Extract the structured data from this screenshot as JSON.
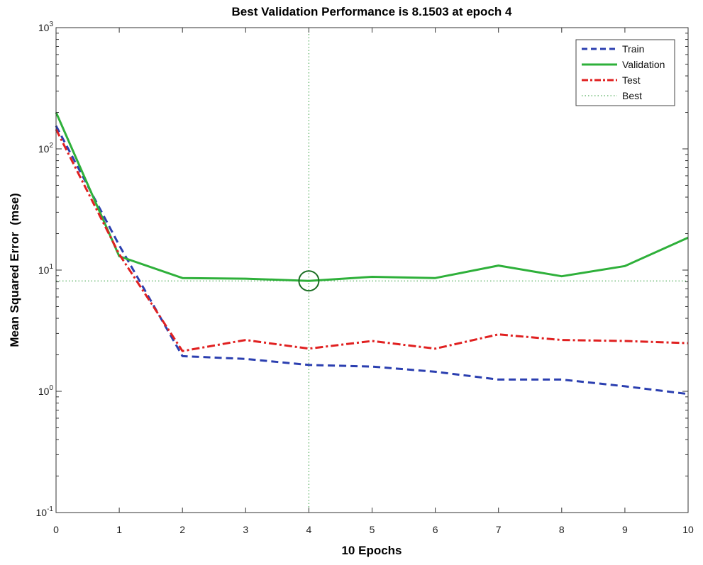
{
  "colors": {
    "train": "#2b3fb0",
    "validation": "#2eb03a",
    "test": "#e02020",
    "best": "#2a9a35",
    "axis": "#333333"
  },
  "chart_data": {
    "type": "line",
    "title": "Best Validation Performance is 8.1503 at epoch 4",
    "xlabel": "10 Epochs",
    "ylabel": "Mean Squared Error  (mse)",
    "xlim": [
      0,
      10
    ],
    "ylim": [
      0.1,
      1000
    ],
    "yscale": "log",
    "x": [
      0,
      1,
      2,
      3,
      4,
      5,
      6,
      7,
      8,
      9,
      10
    ],
    "xticks": [
      "0",
      "1",
      "2",
      "3",
      "4",
      "5",
      "6",
      "7",
      "8",
      "9",
      "10"
    ],
    "yticks": [
      {
        "value": 1000,
        "base": "10",
        "exp": "3"
      },
      {
        "value": 100,
        "base": "10",
        "exp": "2"
      },
      {
        "value": 10,
        "base": "10",
        "exp": "1"
      },
      {
        "value": 1,
        "base": "10",
        "exp": "0"
      },
      {
        "value": 0.1,
        "base": "10",
        "exp": "-1"
      }
    ],
    "series": [
      {
        "name": "Train",
        "key": "train",
        "style": "dashed",
        "values": [
          155,
          16,
          1.95,
          1.85,
          1.65,
          1.6,
          1.45,
          1.25,
          1.25,
          1.1,
          0.95
        ]
      },
      {
        "name": "Validation",
        "key": "validation",
        "style": "solid",
        "values": [
          200,
          13,
          8.6,
          8.5,
          8.1503,
          8.8,
          8.6,
          10.9,
          8.9,
          10.8,
          18.5
        ]
      },
      {
        "name": "Test",
        "key": "test",
        "style": "dashdot",
        "values": [
          145,
          13.5,
          2.15,
          2.65,
          2.25,
          2.6,
          2.25,
          2.95,
          2.65,
          2.6,
          2.5
        ]
      }
    ],
    "best": {
      "name": "Best",
      "epoch": 4,
      "value": 8.1503
    },
    "legend": {
      "position": "top-right",
      "entries": [
        "Train",
        "Validation",
        "Test",
        "Best"
      ]
    }
  }
}
